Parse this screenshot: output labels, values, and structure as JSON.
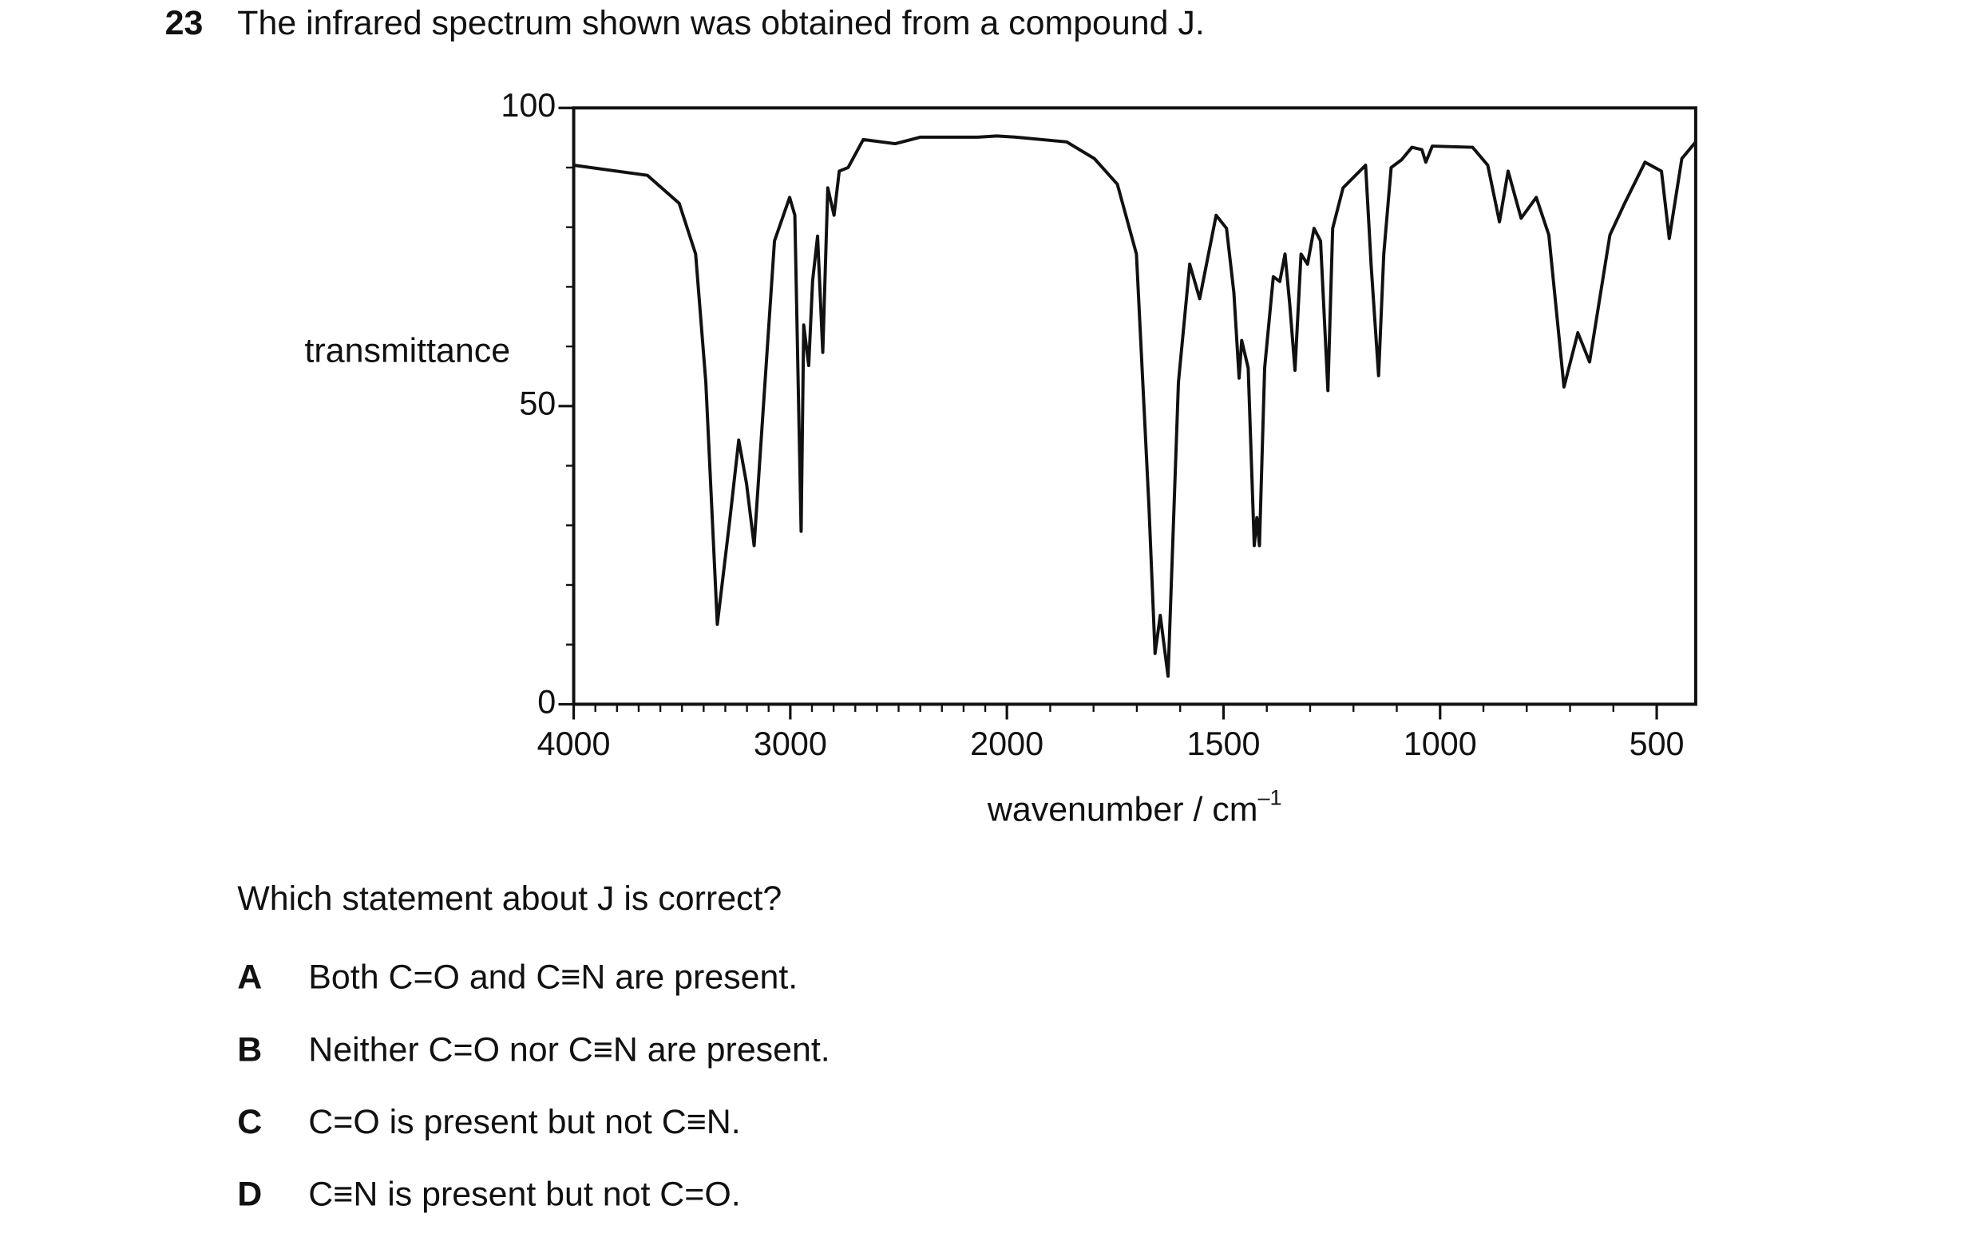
{
  "question": {
    "number": "23",
    "stem": "The infrared spectrum shown was obtained from a compound J.",
    "prompt": "Which statement about J is correct?",
    "options": [
      {
        "letter": "A",
        "text": "Both C=O and C≡N are present."
      },
      {
        "letter": "B",
        "text": "Neither C=O nor C≡N are present."
      },
      {
        "letter": "C",
        "text": "C=O is present but not C≡N."
      },
      {
        "letter": "D",
        "text": "C≡N is present but not C=O."
      }
    ]
  },
  "chart_data": {
    "type": "line",
    "ylabel": "transmittance",
    "xlabel": "wavenumber / cm",
    "xlabel_sup": "–1",
    "xlim": [
      4000,
      410
    ],
    "ylim": [
      0,
      100
    ],
    "xticks": [
      4000,
      3000,
      2000,
      1500,
      1000,
      500
    ],
    "yticks": [
      0,
      50,
      100
    ],
    "x_minor_step": 100,
    "y_minor_step": 10,
    "x_scale_break": 2000,
    "x_scale_ratio": 2,
    "color": "#111111",
    "series": [
      {
        "x": [
          4000,
          3660,
          3513,
          3437,
          3390,
          3337,
          3279,
          3238,
          3202,
          3167,
          3132,
          3073,
          3003,
          2979,
          2950,
          2938,
          2915,
          2897,
          2874,
          2850,
          2827,
          2798,
          2774,
          2733,
          2663,
          2516,
          2399,
          2135,
          2047,
          1979,
          1862,
          1798,
          1745,
          1701,
          1672,
          1658,
          1646,
          1628,
          1604,
          1578,
          1555,
          1517,
          1493,
          1476,
          1464,
          1458,
          1443,
          1429,
          1423,
          1417,
          1405,
          1385,
          1370,
          1358,
          1347,
          1335,
          1321,
          1306,
          1291,
          1276,
          1259,
          1248,
          1224,
          1172,
          1159,
          1142,
          1130,
          1113,
          1089,
          1065,
          1042,
          1033,
          1018,
          925,
          890,
          863,
          843,
          813,
          778,
          749,
          714,
          682,
          655,
          608,
          574,
          527,
          489,
          471,
          442,
          410
        ],
        "values": [
          90.4,
          88.7,
          84,
          75.5,
          54,
          13.4,
          31,
          44.3,
          37,
          26.6,
          45.7,
          77.7,
          85,
          82,
          29,
          63.6,
          56.8,
          71,
          78.5,
          59,
          86.6,
          82,
          89.4,
          90,
          94.7,
          94,
          95.1,
          95.1,
          95.3,
          95.1,
          94.3,
          91.5,
          87.2,
          75.5,
          33,
          8.5,
          14.9,
          4.7,
          54,
          73.8,
          68,
          82,
          79.8,
          69,
          54.7,
          61,
          56.4,
          26.6,
          31.3,
          26.6,
          56.4,
          71.7,
          70.9,
          75.5,
          67,
          56,
          75.5,
          73.8,
          79.8,
          77.7,
          52.6,
          79.8,
          86.6,
          90.4,
          73.4,
          55.1,
          75.5,
          90,
          91.3,
          93.4,
          93,
          90.9,
          93.6,
          93.4,
          90.4,
          80.9,
          89.4,
          81.5,
          85,
          78.7,
          53.2,
          62.3,
          57.4,
          78.7,
          84,
          90.9,
          89.4,
          78.1,
          91.5,
          94.3
        ]
      }
    ]
  }
}
